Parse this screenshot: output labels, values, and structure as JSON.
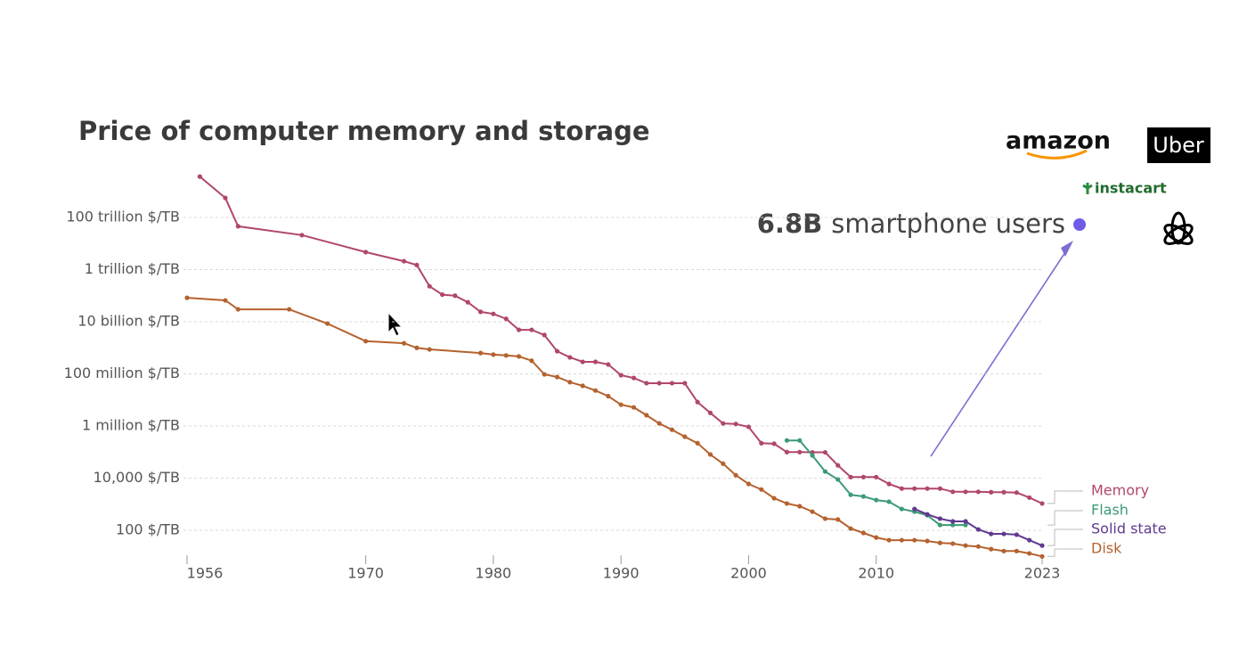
{
  "chart_data": {
    "type": "line",
    "title": "Price of computer memory and storage",
    "log_scale": true,
    "grid": true,
    "xlim": [
      1956,
      2023
    ],
    "xticks": [
      1956,
      1970,
      1980,
      1990,
      2000,
      2010,
      2023
    ],
    "ylim": [
      5,
      10000000000000000
    ],
    "yticks": [
      {
        "value": 100,
        "label": "100 $/TB"
      },
      {
        "value": 10000,
        "label": "10,000 $/TB"
      },
      {
        "value": 1000000,
        "label": "1 million $/TB"
      },
      {
        "value": 100000000,
        "label": "100 million $/TB"
      },
      {
        "value": 10000000000,
        "label": "10 billion $/TB"
      },
      {
        "value": 1000000000000,
        "label": "1 trillion $/TB"
      },
      {
        "value": 100000000000000,
        "label": "100 trillion $/TB"
      }
    ],
    "series": [
      {
        "name": "Memory",
        "color": "#b0476b",
        "x": [
          1957,
          1959,
          1960,
          1965,
          1970,
          1973,
          1974,
          1975,
          1976,
          1977,
          1978,
          1979,
          1980,
          1981,
          1982,
          1983,
          1984,
          1985,
          1986,
          1987,
          1988,
          1989,
          1990,
          1991,
          1992,
          1993,
          1994,
          1995,
          1996,
          1997,
          1998,
          1999,
          2000,
          2001,
          2002,
          2003,
          2004,
          2005,
          2006,
          2007,
          2008,
          2009,
          2010,
          2011,
          2012,
          2013,
          2014,
          2015,
          2016,
          2017,
          2018,
          2019,
          2020,
          2021,
          2022,
          2023
        ],
        "values": [
          3700000000000000,
          560000000000000,
          46000000000000,
          21000000000000,
          4700000000000,
          2100000000000,
          1500000000000,
          230000000000,
          110000000000,
          100000000000,
          56000000000,
          24000000000,
          20000000000,
          13000000000,
          4900000000,
          4900000000,
          3100000000,
          740000000,
          430000000,
          290000000,
          290000000,
          230000000,
          89000000,
          70000000,
          44000000,
          44000000,
          44000000,
          44000000,
          8300000,
          3200000,
          1260000,
          1200000,
          930000,
          220000,
          210000,
          100000,
          100000,
          98000,
          98000,
          31000,
          11000,
          11000,
          11000,
          6000,
          4000,
          4000,
          4000,
          4000,
          3000,
          3000,
          3000,
          2900,
          2900,
          2800,
          1800,
          1070
        ]
      },
      {
        "name": "Flash",
        "color": "#3d9a76",
        "x": [
          2003,
          2004,
          2005,
          2006,
          2007,
          2008,
          2009,
          2010,
          2011,
          2012,
          2013,
          2014,
          2015,
          2016,
          2017
        ],
        "values": [
          280000,
          280000,
          74000,
          18000,
          8900,
          2300,
          2000,
          1450,
          1250,
          660,
          520,
          380,
          160,
          160,
          160
        ]
      },
      {
        "name": "Solid state",
        "color": "#5f3a8f",
        "x": [
          2013,
          2014,
          2015,
          2016,
          2017,
          2018,
          2019,
          2020,
          2021,
          2022,
          2023
        ],
        "values": [
          660,
          410,
          280,
          220,
          220,
          108,
          73,
          73,
          68,
          42,
          26
        ]
      },
      {
        "name": "Disk",
        "color": "#b4622e",
        "x": [
          1956,
          1959,
          1960,
          1964,
          1967,
          1970,
          1973,
          1974,
          1975,
          1979,
          1980,
          1981,
          1982,
          1983,
          1984,
          1985,
          1986,
          1987,
          1988,
          1989,
          1990,
          1991,
          1992,
          1993,
          1994,
          1995,
          1996,
          1997,
          1998,
          1999,
          2000,
          2001,
          2002,
          2003,
          2004,
          2005,
          2006,
          2007,
          2008,
          2009,
          2010,
          2011,
          2012,
          2013,
          2014,
          2015,
          2016,
          2017,
          2018,
          2019,
          2020,
          2021,
          2022,
          2023
        ],
        "values": [
          83000000000,
          66000000000,
          30000000000,
          30000000000,
          8500000000,
          1800000000,
          1500000000,
          1000000000,
          870000000,
          630000000,
          550000000,
          510000000,
          470000000,
          320000000,
          96000000,
          76000000,
          48000000,
          35000000,
          23000000,
          14000000,
          6600000,
          5200000,
          2600000,
          1260000,
          720000,
          390000,
          220000,
          81000,
          36000,
          13000,
          6000,
          3700,
          1700,
          1070,
          840,
          520,
          280,
          260,
          117,
          79,
          53,
          42,
          42,
          42,
          39,
          33,
          31,
          26,
          24,
          19,
          16,
          16,
          13,
          10
        ]
      }
    ]
  },
  "overlay": {
    "stat": "6.8B",
    "stat_text": "smartphone users",
    "logos": [
      "amazon",
      "Uber",
      "instacart"
    ]
  }
}
